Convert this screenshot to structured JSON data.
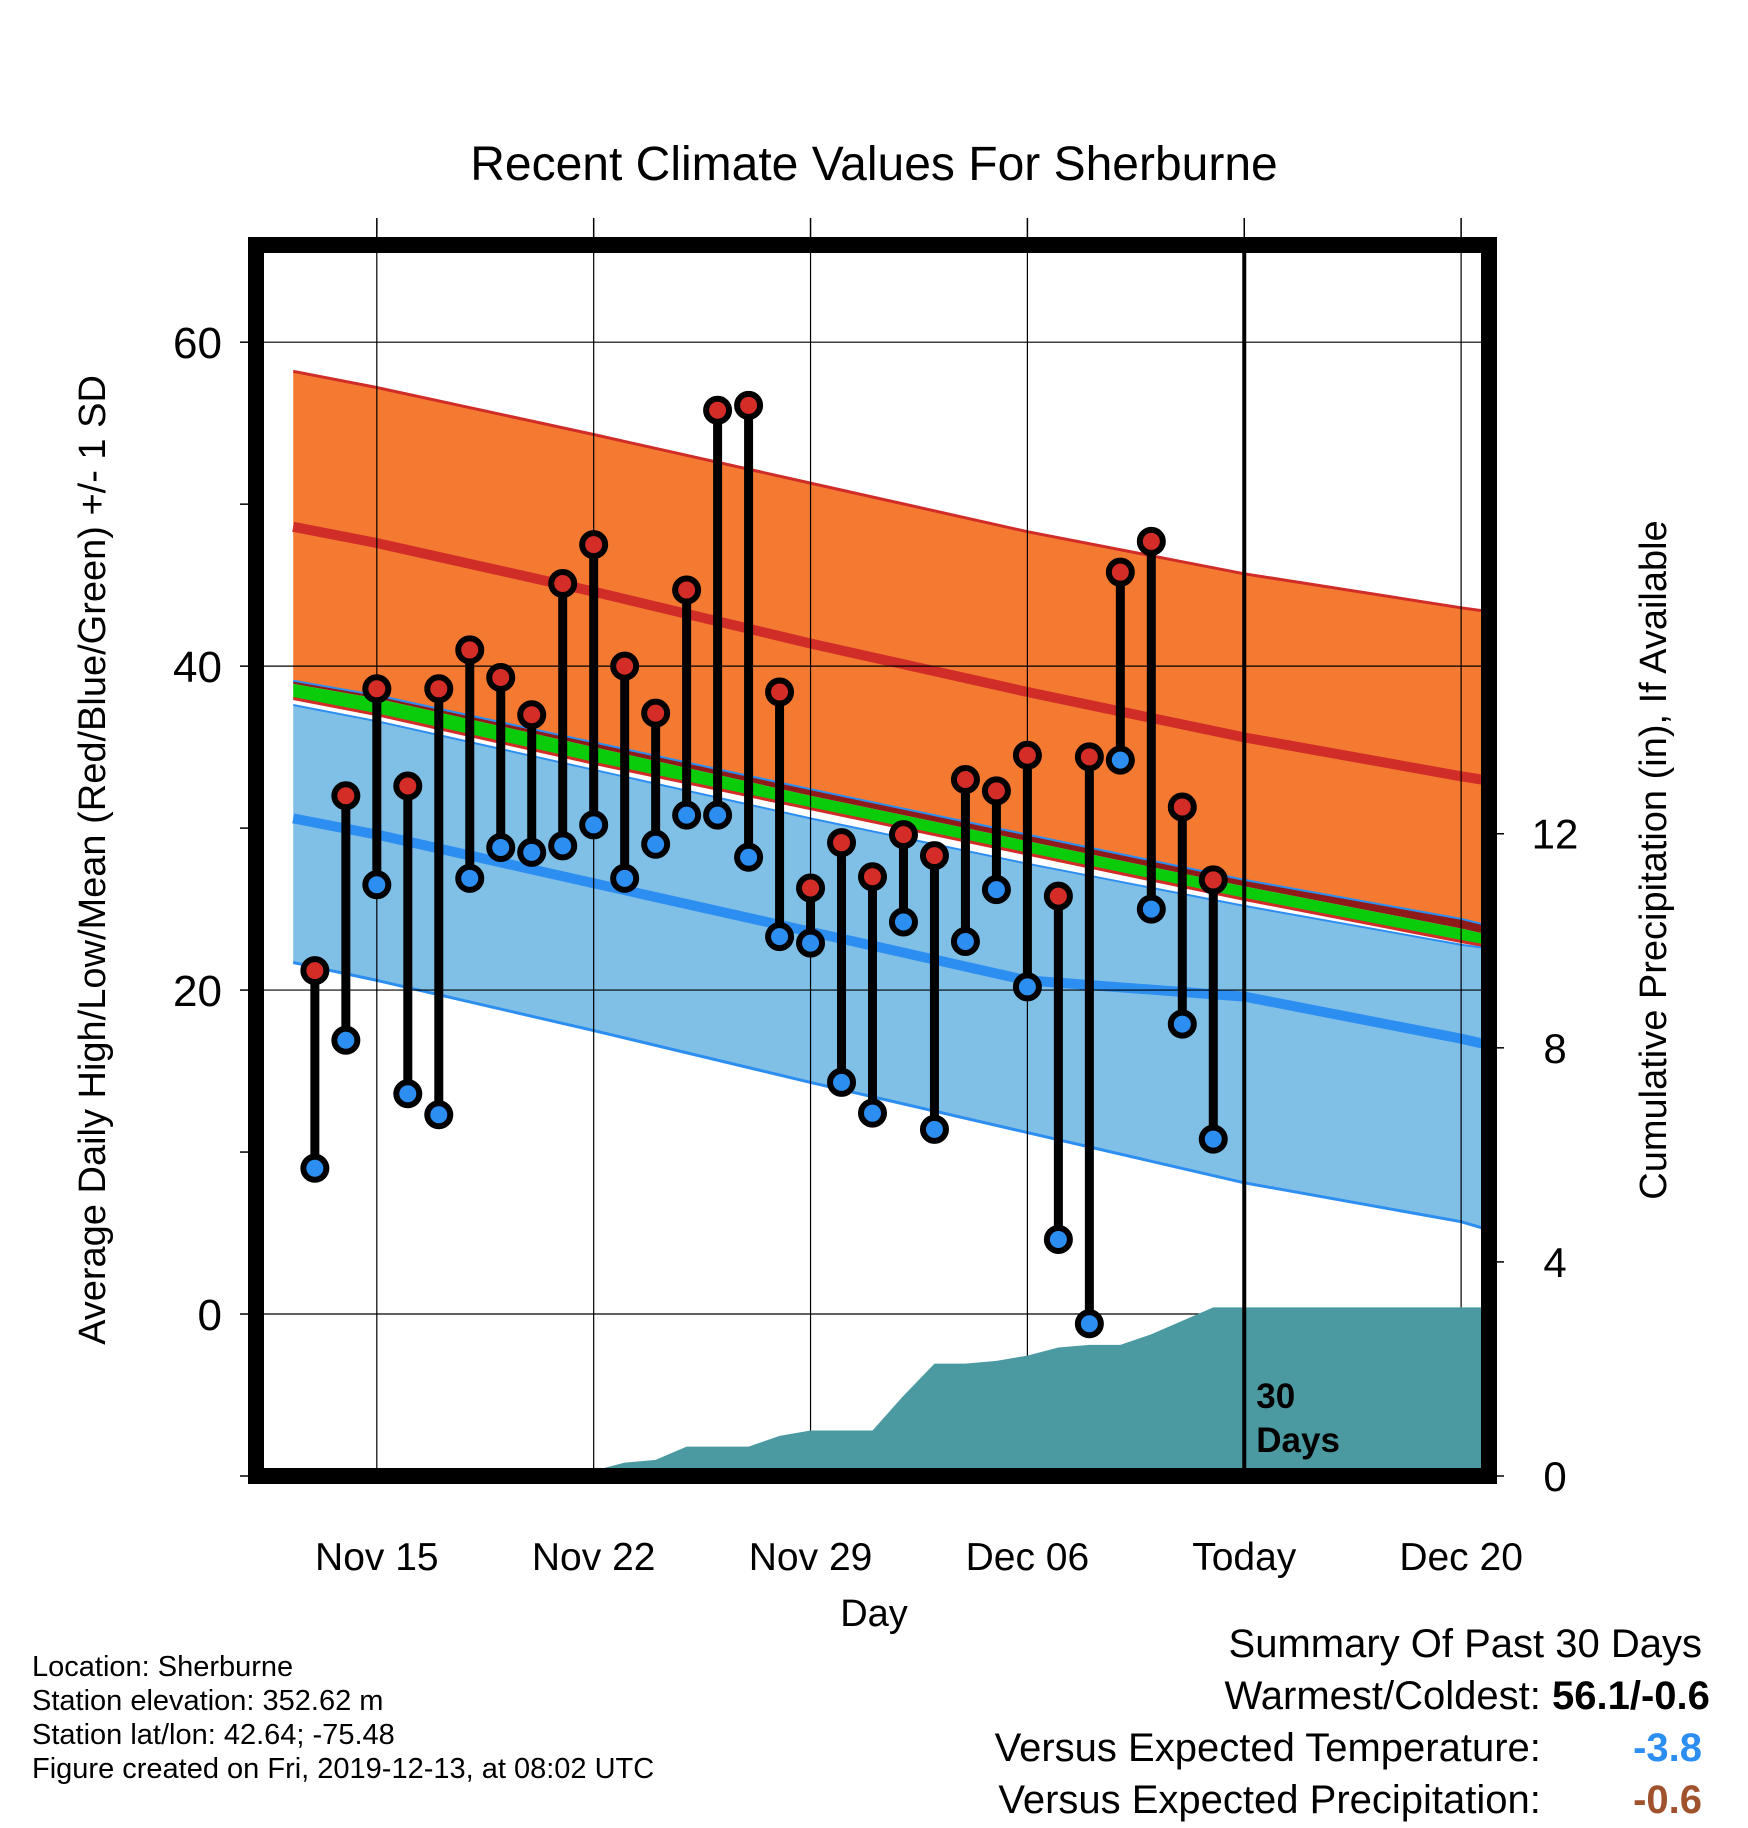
{
  "chart_data": {
    "type": "line",
    "title": "Recent Climate Values For Sherburne",
    "xlabel": "Day",
    "ylabel": "Average Daily High/Low/Mean (Red/Blue/Green) +/- 1 SD",
    "y2label": "Cumulative Precipitation (in), If Available",
    "xlim": [
      -3.9,
      35.9
    ],
    "ylim": [
      -10,
      66
    ],
    "y2lim": [
      0,
      23
    ],
    "x_ticks": [
      {
        "x": 0,
        "label": "Nov 15"
      },
      {
        "x": 7,
        "label": "Nov 22"
      },
      {
        "x": 14,
        "label": "Nov 29"
      },
      {
        "x": 21,
        "label": "Dec 06"
      },
      {
        "x": 28,
        "label": "Today"
      },
      {
        "x": 35,
        "label": "Dec 20"
      }
    ],
    "y_ticks": [
      0,
      20,
      40,
      60
    ],
    "y_minor_ticks": [
      -10,
      10,
      30,
      50
    ],
    "y2_ticks": [
      0,
      4,
      8,
      12
    ],
    "today_marker": {
      "x": 28,
      "label_line1": "30",
      "label_line2": "Days"
    },
    "grid": true,
    "days": [
      -2,
      -1,
      0,
      1,
      2,
      3,
      4,
      5,
      6,
      7,
      8,
      9,
      10,
      11,
      12,
      13,
      14,
      15,
      16,
      17,
      18,
      19,
      20,
      21,
      22,
      23,
      24,
      25,
      26,
      27
    ],
    "observed_high": [
      21.2,
      32.0,
      38.6,
      32.6,
      38.6,
      41.0,
      39.3,
      37.0,
      45.1,
      47.5,
      40.0,
      37.1,
      44.7,
      55.8,
      56.1,
      38.4,
      26.3,
      29.1,
      27.0,
      29.6,
      28.3,
      33.0,
      32.3,
      34.5,
      25.8,
      34.4,
      45.8,
      47.7,
      31.3,
      26.8
    ],
    "observed_low": [
      9.0,
      16.9,
      26.5,
      13.6,
      12.3,
      26.9,
      28.8,
      28.5,
      28.9,
      30.2,
      26.9,
      29.0,
      30.8,
      30.8,
      28.2,
      23.3,
      22.9,
      14.3,
      12.4,
      24.2,
      11.4,
      23.0,
      26.2,
      20.2,
      4.6,
      -0.6,
      34.2,
      25.0,
      17.9,
      10.8
    ],
    "normals": {
      "x": [
        -2.7,
        0,
        7,
        14,
        21,
        28,
        35,
        37.3
      ],
      "high_plus_sd": [
        58.2,
        57.2,
        54.3,
        51.3,
        48.3,
        45.7,
        43.6,
        43.0
      ],
      "high_mean": [
        48.6,
        47.6,
        44.6,
        41.4,
        38.4,
        35.6,
        33.2,
        32.5
      ],
      "high_minus_sd": [
        39.1,
        38.2,
        35.3,
        32.4,
        29.6,
        26.8,
        24.4,
        23.3
      ],
      "mean_plus_sd": [
        38.9,
        38.0,
        35.0,
        32.0,
        29.2,
        26.4,
        23.8,
        22.8
      ],
      "mean_minus_sd": [
        38.0,
        37.0,
        34.0,
        31.2,
        28.4,
        25.6,
        23.0,
        22.2
      ],
      "low_plus_sd": [
        37.6,
        36.6,
        33.6,
        30.6,
        27.8,
        25.2,
        22.8,
        22.2
      ],
      "low_mean": [
        30.6,
        29.6,
        26.6,
        23.6,
        20.6,
        19.6,
        17.0,
        16.0
      ],
      "low_minus_sd": [
        21.7,
        20.6,
        17.5,
        14.3,
        11.2,
        8.1,
        5.7,
        4.4
      ]
    },
    "precip_cumulative": {
      "x": [
        -3.0,
        0,
        3,
        5,
        6,
        7,
        8,
        9,
        10,
        11,
        12,
        13,
        14,
        15,
        16,
        17,
        18,
        19,
        20,
        21,
        22,
        23,
        24,
        25,
        27,
        28,
        35.9
      ],
      "values": [
        0.0,
        0.0,
        0.0,
        0.02,
        0.05,
        0.1,
        0.25,
        0.3,
        0.55,
        0.55,
        0.55,
        0.75,
        0.85,
        0.85,
        0.85,
        1.5,
        2.1,
        2.1,
        2.15,
        2.25,
        2.4,
        2.45,
        2.45,
        2.65,
        3.15,
        3.15,
        3.15
      ]
    },
    "colors": {
      "high_band": "#f47a31",
      "high_mean": "#d02c28",
      "above_normal": "#8f1a1a",
      "mean_band": "#0bcc0b",
      "low_band": "#80bfe6",
      "low_mean": "#2d8ef2",
      "precip": "#4b9aa1",
      "high_dot": "#d42d28",
      "low_dot": "#2c8ef0"
    }
  },
  "info": {
    "location": "Location: Sherburne",
    "elevation": "Station elevation: 352.62 m",
    "latlon": "Station lat/lon: 42.64; -75.48",
    "created": "Figure created on Fri, 2019-12-13, at 08:02 UTC"
  },
  "summary": {
    "heading": "Summary Of Past 30 Days",
    "warm_cold_label": "Warmest/Coldest:",
    "warm_cold_value": "56.1/-0.6",
    "temp_label": "Versus Expected Temperature:",
    "temp_value": "-3.8",
    "temp_color": "#2c8ef0",
    "precip_label": "Versus Expected Precipitation:",
    "precip_value": "-0.6",
    "precip_color": "#a0522d"
  }
}
